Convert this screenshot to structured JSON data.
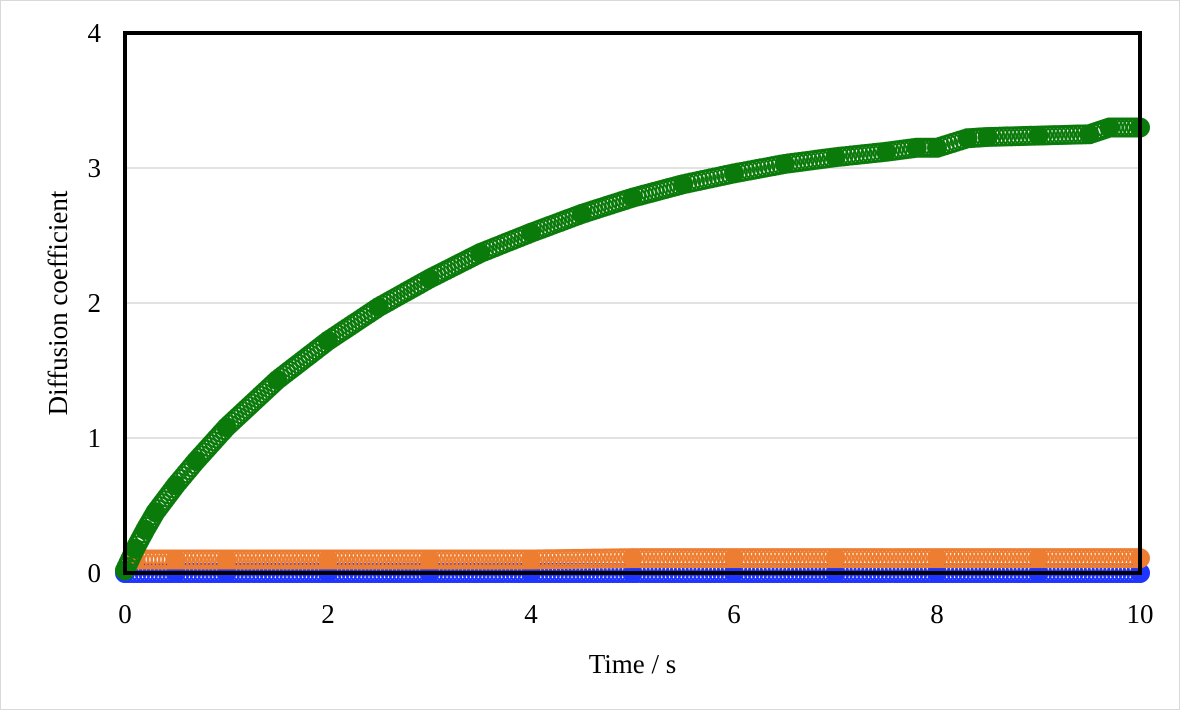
{
  "chart_data": {
    "type": "scatter",
    "xlabel": "Time / s",
    "ylabel": "Diffusion coefficient",
    "xlim": [
      0,
      10
    ],
    "ylim": [
      0,
      4
    ],
    "xticks": [
      0,
      2,
      4,
      6,
      8,
      10
    ],
    "yticks": [
      0,
      1,
      2,
      3,
      4
    ],
    "grid": "horizontal",
    "legend": "none",
    "series": [
      {
        "color": "#0a7a0a",
        "x": [
          0.0,
          0.1,
          0.2,
          0.3,
          0.5,
          0.7,
          1.0,
          1.5,
          2.0,
          2.5,
          3.0,
          3.5,
          4.0,
          4.5,
          5.0,
          5.5,
          6.0,
          6.5,
          7.0,
          7.5,
          7.8,
          8.0,
          8.3,
          8.5,
          9.0,
          9.5,
          9.7,
          10.0
        ],
        "y": [
          0.02,
          0.18,
          0.32,
          0.45,
          0.65,
          0.83,
          1.08,
          1.43,
          1.72,
          1.97,
          2.18,
          2.37,
          2.52,
          2.66,
          2.78,
          2.88,
          2.96,
          3.03,
          3.08,
          3.12,
          3.15,
          3.15,
          3.22,
          3.23,
          3.24,
          3.25,
          3.3,
          3.3
        ]
      },
      {
        "color": "#ed7d31",
        "x": [
          0.1,
          0.5,
          1.0,
          2.0,
          3.0,
          4.0,
          5.0,
          6.0,
          7.0,
          8.0,
          9.0,
          10.0
        ],
        "y": [
          0.1,
          0.1,
          0.1,
          0.1,
          0.1,
          0.1,
          0.11,
          0.11,
          0.11,
          0.11,
          0.11,
          0.11
        ]
      },
      {
        "color": "#1f35ff",
        "x": [
          0.0,
          0.5,
          1.0,
          2.0,
          3.0,
          4.0,
          5.0,
          6.0,
          7.0,
          8.0,
          9.0,
          10.0
        ],
        "y": [
          0.0,
          0.0,
          0.0,
          0.0,
          0.0,
          0.0,
          0.0,
          0.0,
          0.0,
          0.0,
          0.0,
          0.0
        ]
      }
    ]
  }
}
